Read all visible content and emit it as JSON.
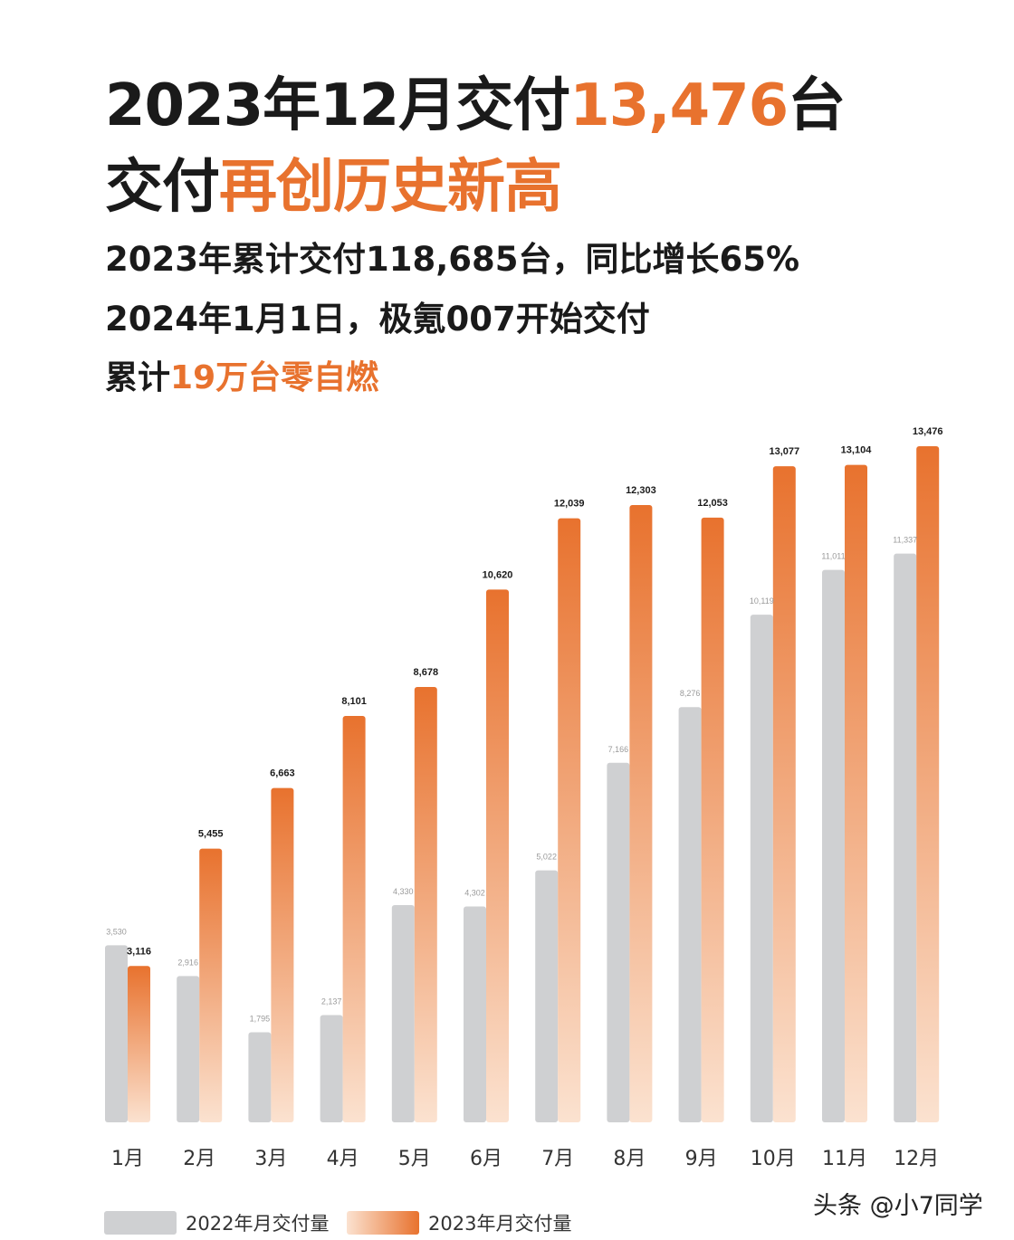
{
  "headline": {
    "line1_pre": "2023年12月交付",
    "line1_accent": "13,476",
    "line1_post": "台",
    "line2_pre": "交付",
    "line2_accent": "再创历史新高"
  },
  "subtitles": {
    "line1": "2023年累计交付118,685台，同比增长65%",
    "line2": "2024年1月1日，极氪007开始交付",
    "line3_pre": "累计",
    "line3_accent": "19万台零自燃"
  },
  "colors": {
    "accent": "#e8722e",
    "bar_2022": "#cfd0d2",
    "bar_2023_top": "#e8722e",
    "bar_2023_bottom": "#fbe2d0"
  },
  "chart_data": {
    "type": "bar",
    "categories": [
      "1月",
      "2月",
      "3月",
      "4月",
      "5月",
      "6月",
      "7月",
      "8月",
      "9月",
      "10月",
      "11月",
      "12月"
    ],
    "series": [
      {
        "name": "2022年月交付量",
        "values": [
          3530,
          2916,
          1795,
          2137,
          4330,
          4302,
          5022,
          7166,
          8276,
          10119,
          11011,
          11337
        ],
        "labels": [
          "3,530",
          "2,916",
          "1,795",
          "2,137",
          "4,330",
          "4,302",
          "5,022",
          "7,166",
          "8,276",
          "10,119",
          "11,011",
          "11,337"
        ]
      },
      {
        "name": "2023年月交付量",
        "values": [
          3116,
          5455,
          6663,
          8101,
          8678,
          10620,
          12039,
          12303,
          12053,
          13077,
          13104,
          13476
        ],
        "labels": [
          "3,116",
          "5,455",
          "6,663",
          "8,101",
          "8,678",
          "10,620",
          "12,039",
          "12,303",
          "12,053",
          "13,077",
          "13,104",
          "13,476"
        ]
      }
    ],
    "ylim": [
      0,
      13476
    ],
    "grid": false,
    "legend_position": "bottom-left"
  },
  "watermark": "头条 @小7同学"
}
